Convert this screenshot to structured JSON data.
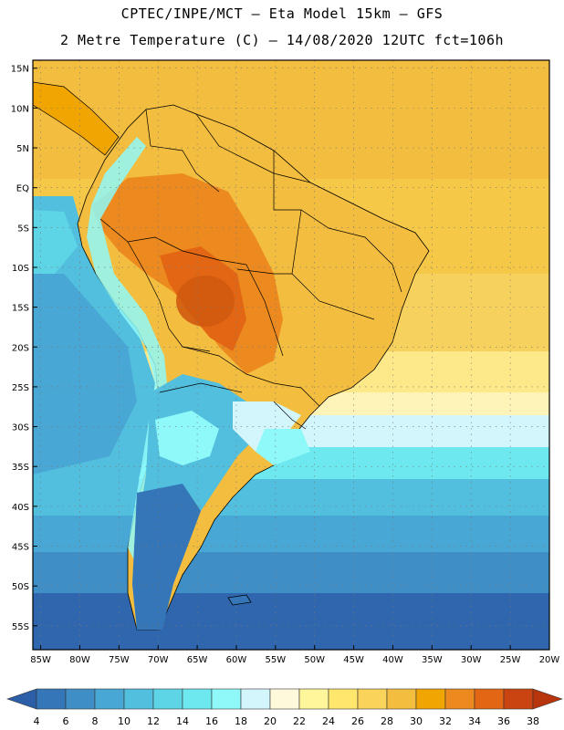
{
  "header": {
    "line1": "CPTEC/INPE/MCT –  Eta Model 15km – GFS",
    "line2": "2 Metre Temperature (C) – 14/08/2020 12UTC fct=106h"
  },
  "map": {
    "lat_labels": [
      "15N",
      "10N",
      "5N",
      "EQ",
      "5S",
      "10S",
      "15S",
      "20S",
      "25S",
      "30S",
      "35S",
      "40S",
      "45S",
      "50S",
      "55S"
    ],
    "lon_labels": [
      "85W",
      "80W",
      "75W",
      "70W",
      "65W",
      "60W",
      "55W",
      "50W",
      "45W",
      "40W",
      "35W",
      "30W",
      "25W",
      "20W"
    ],
    "lat_range": [
      16,
      -58
    ],
    "lon_range": [
      -86,
      -20
    ]
  },
  "colorbar": {
    "labels": [
      "4",
      "6",
      "8",
      "10",
      "12",
      "14",
      "16",
      "18",
      "20",
      "22",
      "24",
      "26",
      "28",
      "30",
      "32",
      "34",
      "36",
      "38"
    ],
    "colors": [
      "#2d5ea8",
      "#3476b8",
      "#3f8fc6",
      "#48a7d4",
      "#52bfde",
      "#5ed5e6",
      "#6ee8ef",
      "#8ff9f9",
      "#d2f6fb",
      "#fff9dc",
      "#fff59a",
      "#ffe66d",
      "#fad35b",
      "#f3bd3f",
      "#f0a500",
      "#ec8a1f",
      "#e26614",
      "#c94410",
      "#b8340c"
    ]
  }
}
